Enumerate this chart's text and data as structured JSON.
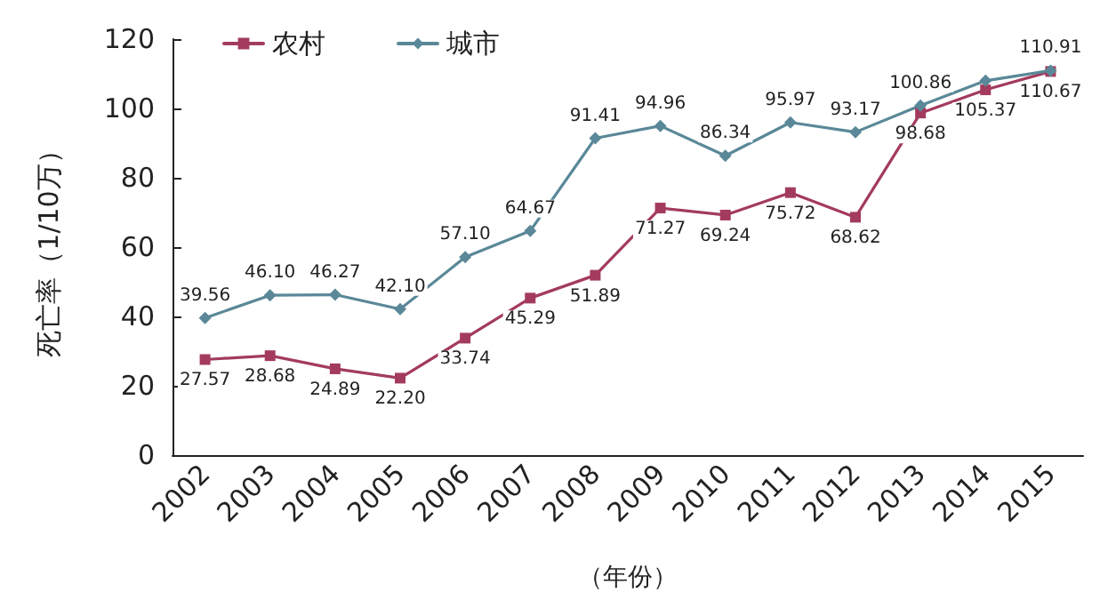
{
  "chart_data": {
    "type": "line",
    "xlabel": "（年份）",
    "ylabel": "死亡率（1/10万）",
    "categories": [
      "2002",
      "2003",
      "2004",
      "2005",
      "2006",
      "2007",
      "2008",
      "2009",
      "2010",
      "2011",
      "2012",
      "2013",
      "2014",
      "2015"
    ],
    "series": [
      {
        "name": "农村",
        "color": "#a33b5e",
        "marker": "square",
        "values": [
          27.57,
          28.68,
          24.89,
          22.2,
          33.74,
          45.29,
          51.89,
          71.27,
          69.24,
          75.72,
          68.62,
          98.68,
          105.37,
          110.67
        ],
        "value_labels": [
          "27.57",
          "28.68",
          "24.89",
          "22.20",
          "33.74",
          "45.29",
          "51.89",
          "71.27",
          "69.24",
          "75.72",
          "68.62",
          "98.68",
          "105.37",
          "110.67"
        ]
      },
      {
        "name": "城市",
        "color": "#5a8898",
        "marker": "diamond",
        "values": [
          39.56,
          46.1,
          46.27,
          42.1,
          57.1,
          64.67,
          91.41,
          94.96,
          86.34,
          95.97,
          93.17,
          100.86,
          108,
          110.91
        ],
        "value_labels": [
          "39.56",
          "46.10",
          "46.27",
          "42.10",
          "57.10",
          "64.67",
          "91.41",
          "94.96",
          "86.34",
          "95.97",
          "93.17",
          "100.86",
          null,
          "110.91"
        ]
      }
    ],
    "ylim": [
      0,
      120
    ],
    "yticks": [
      0,
      20,
      40,
      60,
      80,
      100,
      120
    ],
    "grid": false,
    "legend": "top left",
    "line_style": "solid"
  }
}
